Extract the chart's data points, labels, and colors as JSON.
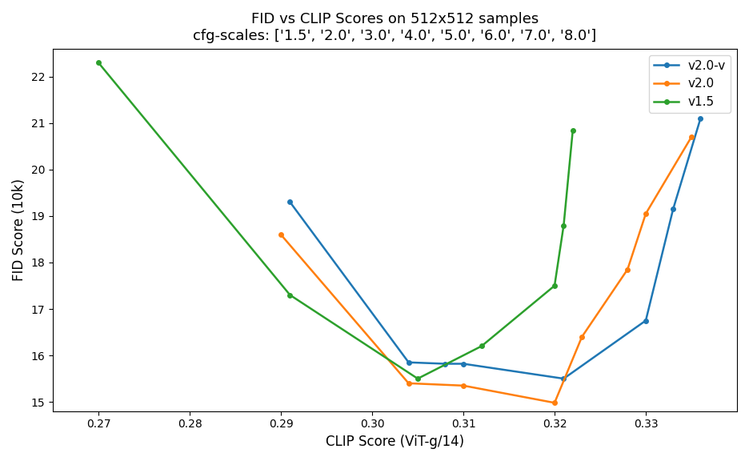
{
  "title_line1": "FID vs CLIP Scores on 512x512 samples",
  "title_line2": "cfg-scales: ['1.5', '2.0', '3.0', '4.0', '5.0', '6.0', '7.0', '8.0']",
  "xlabel": "CLIP Score (ViT-g/14)",
  "ylabel": "FID Score (10k)",
  "series": [
    {
      "label": "v2.0-v",
      "color": "#1f77b4",
      "clip": [
        0.291,
        0.304,
        0.308,
        0.31,
        0.321,
        0.33,
        0.333,
        0.336
      ],
      "fid": [
        19.3,
        15.85,
        15.82,
        15.82,
        15.5,
        16.75,
        19.15,
        21.1
      ]
    },
    {
      "label": "v2.0",
      "color": "#ff7f0e",
      "clip": [
        0.29,
        0.304,
        0.31,
        0.32,
        0.323,
        0.328,
        0.33,
        0.335
      ],
      "fid": [
        18.6,
        15.4,
        15.35,
        14.98,
        16.4,
        17.85,
        19.05,
        20.7
      ]
    },
    {
      "label": "v1.5",
      "color": "#2ca02c",
      "clip": [
        0.27,
        0.291,
        0.305,
        0.312,
        0.32,
        0.321,
        0.322
      ],
      "fid": [
        22.3,
        17.3,
        15.5,
        16.2,
        17.5,
        18.8,
        20.85
      ]
    }
  ],
  "xlim": [
    0.265,
    0.34
  ],
  "ylim": [
    14.8,
    22.6
  ],
  "xticks": [
    0.27,
    0.28,
    0.29,
    0.3,
    0.31,
    0.32,
    0.33
  ],
  "yticks": [
    15,
    16,
    17,
    18,
    19,
    20,
    21,
    22
  ],
  "legend_loc": "upper right",
  "title_fontsize": 13,
  "axes_label_fontsize": 12,
  "background_color": "#ffffff"
}
